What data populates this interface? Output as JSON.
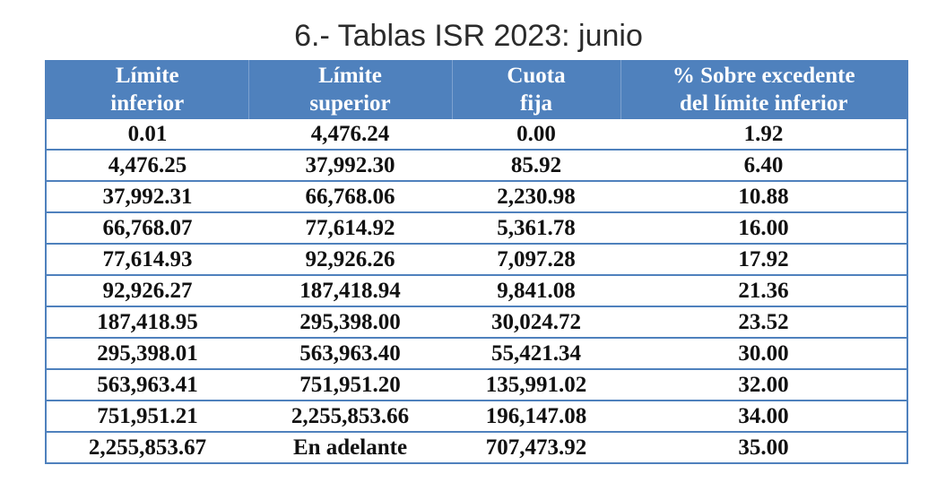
{
  "title": "6.- Tablas ISR 2023: junio",
  "table": {
    "headers": [
      {
        "line1": "Límite",
        "line2": "inferior"
      },
      {
        "line1": "Límite",
        "line2": "superior"
      },
      {
        "line1": "Cuota",
        "line2": "fija"
      },
      {
        "line1": "% Sobre excedente",
        "line2": "del límite inferior"
      }
    ],
    "rows": [
      [
        "0.01",
        "4,476.24",
        "0.00",
        "1.92"
      ],
      [
        "4,476.25",
        "37,992.30",
        "85.92",
        "6.40"
      ],
      [
        "37,992.31",
        "66,768.06",
        "2,230.98",
        "10.88"
      ],
      [
        "66,768.07",
        "77,614.92",
        "5,361.78",
        "16.00"
      ],
      [
        "77,614.93",
        "92,926.26",
        "7,097.28",
        "17.92"
      ],
      [
        "92,926.27",
        "187,418.94",
        "9,841.08",
        "21.36"
      ],
      [
        "187,418.95",
        "295,398.00",
        "30,024.72",
        "23.52"
      ],
      [
        "295,398.01",
        "563,963.40",
        "55,421.34",
        "30.00"
      ],
      [
        "563,963.41",
        "751,951.20",
        "135,991.02",
        "32.00"
      ],
      [
        "751,951.21",
        "2,255,853.66",
        "196,147.08",
        "34.00"
      ],
      [
        "2,255,853.67",
        "En adelante",
        "707,473.92",
        "35.00"
      ]
    ]
  },
  "colors": {
    "header_bg": "#4f81bd",
    "header_text": "#ffffff",
    "grid": "#4f81bd"
  }
}
